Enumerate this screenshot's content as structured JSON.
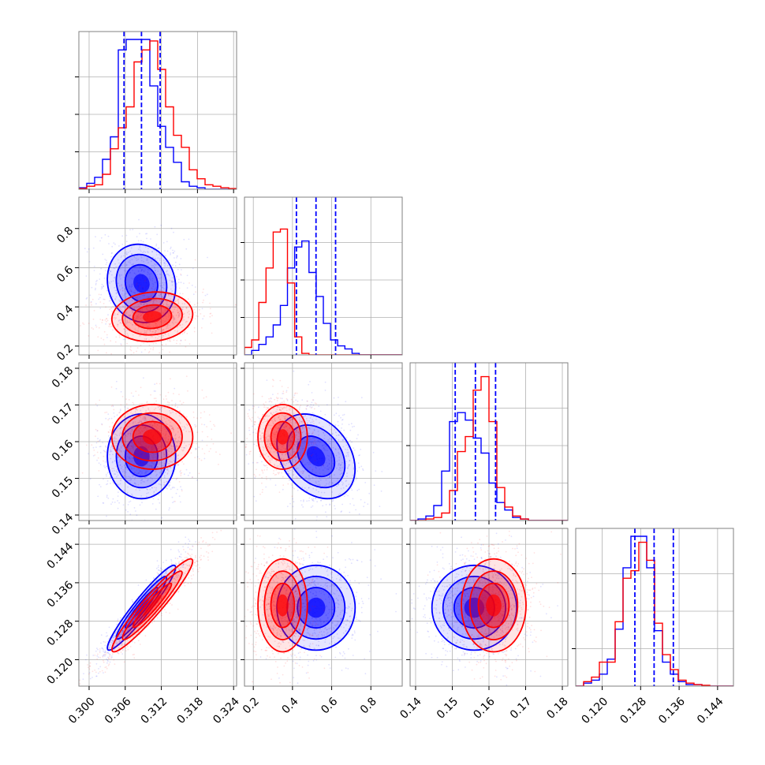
{
  "chart_data": {
    "type": "scatter",
    "subtype": "corner-plot",
    "grid": true,
    "legend": "none",
    "colors": {
      "series_a": "#0000ff",
      "series_b": "#ff0000",
      "grid": "#b0b0b0",
      "frame": "#808080"
    },
    "series": [
      {
        "color": "#0000ff",
        "mean": [
          0.3087,
          0.52,
          0.156,
          0.1308
        ],
        "sd": [
          0.0027,
          0.095,
          0.0055,
          0.0042
        ],
        "corr": {
          "0-3": 0.95,
          "1-2": -0.3,
          "0-1": -0.1
        }
      },
      {
        "color": "#ff0000",
        "mean": [
          0.3105,
          0.35,
          0.1613,
          0.1313
        ],
        "sd": [
          0.0032,
          0.06,
          0.0042,
          0.0046
        ],
        "corr": {
          "0-3": 0.95,
          "0-1": 0.1
        }
      }
    ],
    "axes": [
      {
        "range": [
          0.2983,
          0.3245
        ],
        "ticks": [
          "0.300",
          "0.306",
          "0.312",
          "0.318",
          "0.324"
        ],
        "tick_values": [
          0.3,
          0.306,
          0.312,
          0.318,
          0.324
        ]
      },
      {
        "range": [
          0.155,
          0.96
        ],
        "ticks": [
          "0.2",
          "0.4",
          "0.6",
          "0.8"
        ],
        "tick_values": [
          0.2,
          0.4,
          0.6,
          0.8
        ]
      },
      {
        "range": [
          0.1385,
          0.1815
        ],
        "ticks": [
          "0.14",
          "0.15",
          "0.16",
          "0.17",
          "0.18"
        ],
        "tick_values": [
          0.14,
          0.15,
          0.16,
          0.17,
          0.18
        ]
      },
      {
        "range": [
          0.1145,
          0.1473
        ],
        "ticks": [
          "0.120",
          "0.128",
          "0.136",
          "0.144"
        ],
        "tick_values": [
          0.12,
          0.128,
          0.136,
          0.144
        ]
      }
    ],
    "quantile_lines": [
      [
        0.3058,
        0.3087,
        0.3118
      ],
      [
        0.42,
        0.52,
        0.62
      ],
      [
        0.1508,
        0.1563,
        0.1618
      ],
      [
        0.1268,
        0.1308,
        0.1348
      ]
    ],
    "histograms": [
      {
        "bin_range": [
          0.2983,
          0.3245
        ],
        "bins": 20,
        "blue": [
          0.01,
          0.04,
          0.08,
          0.2,
          0.35,
          0.93,
          1.0,
          1.0,
          1.0,
          0.69,
          0.42,
          0.28,
          0.18,
          0.05,
          0.02,
          0.01,
          0,
          0,
          0,
          0
        ],
        "red": [
          0.005,
          0.02,
          0.03,
          0.1,
          0.27,
          0.41,
          0.55,
          0.85,
          0.93,
          0.99,
          0.8,
          0.55,
          0.36,
          0.28,
          0.13,
          0.07,
          0.03,
          0.02,
          0.01,
          0.005
        ]
      },
      {
        "bin_range": [
          0.155,
          0.96
        ],
        "bins": 22,
        "blue": [
          0,
          0.03,
          0.07,
          0.12,
          0.2,
          0.33,
          0.58,
          0.72,
          0.76,
          0.55,
          0.39,
          0.21,
          0.1,
          0.06,
          0.04,
          0.01,
          0,
          0,
          0,
          0,
          0,
          0
        ],
        "red": [
          0.05,
          0.1,
          0.35,
          0.58,
          0.82,
          0.84,
          0.48,
          0.12,
          0.01,
          0,
          0,
          0,
          0,
          0,
          0,
          0,
          0,
          0,
          0,
          0,
          0,
          0
        ]
      },
      {
        "bin_range": [
          0.1385,
          0.1815
        ],
        "bins": 20,
        "blue": [
          0,
          0.01,
          0.03,
          0.1,
          0.33,
          0.66,
          0.72,
          0.67,
          0.55,
          0.45,
          0.25,
          0.12,
          0.07,
          0.02,
          0.01,
          0,
          0,
          0,
          0,
          0
        ],
        "red": [
          0,
          0,
          0.01,
          0.02,
          0.05,
          0.2,
          0.46,
          0.56,
          0.87,
          0.96,
          0.66,
          0.22,
          0.09,
          0.03,
          0.01,
          0,
          0,
          0,
          0,
          0
        ]
      },
      {
        "bin_range": [
          0.1145,
          0.1473
        ],
        "bins": 20,
        "blue": [
          0,
          0.02,
          0.04,
          0.08,
          0.18,
          0.38,
          0.79,
          1.0,
          1.0,
          0.79,
          0.37,
          0.16,
          0.08,
          0.03,
          0.01,
          0.01,
          0,
          0,
          0,
          0
        ],
        "red": [
          0,
          0.03,
          0.06,
          0.16,
          0.16,
          0.43,
          0.72,
          0.77,
          0.96,
          0.84,
          0.42,
          0.21,
          0.11,
          0.04,
          0.02,
          0.01,
          0.005,
          0,
          0,
          0
        ]
      }
    ]
  }
}
